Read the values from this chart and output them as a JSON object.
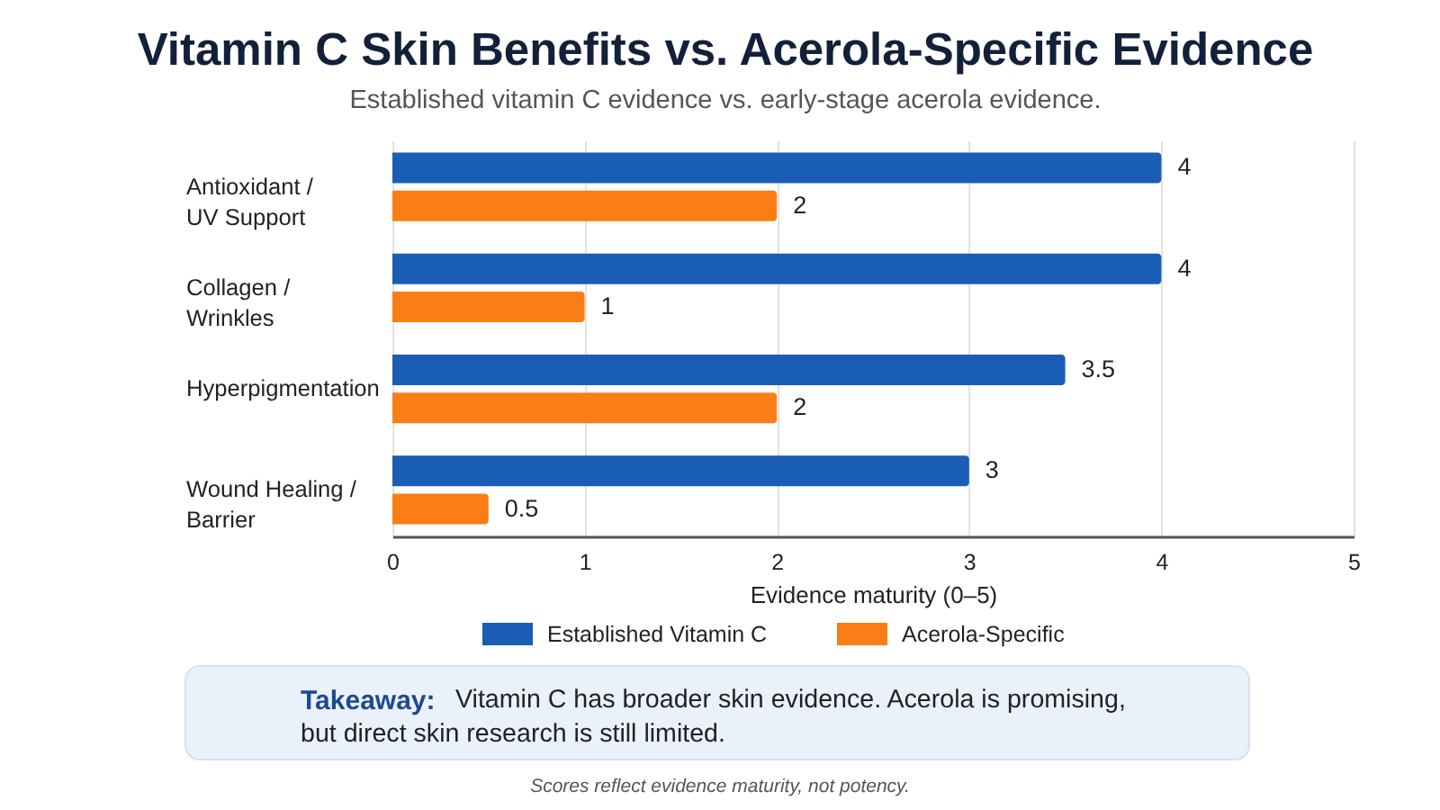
{
  "chart_data": {
    "type": "bar",
    "orientation": "horizontal",
    "title": "Vitamin C Skin Benefits vs. Acerola-Specific Evidence",
    "subtitle": "Established vitamin C evidence vs. early-stage acerola evidence.",
    "categories": [
      "Antioxidant /\nUV Support",
      "Collagen /\nWrinkles",
      "Hyperpigmentation",
      "Wound Healing /\nBarrier"
    ],
    "series": [
      {
        "name": "Established Vitamin C",
        "color": "#1a5db4",
        "values": [
          4,
          4,
          3.5,
          3
        ]
      },
      {
        "name": "Acerola-Specific",
        "color": "#fb7d15",
        "values": [
          2,
          1,
          2,
          0.5
        ]
      }
    ],
    "xlabel": "Evidence maturity (0–5)",
    "xlim": [
      0,
      5
    ],
    "xticks": [
      0,
      1,
      2,
      3,
      4,
      5
    ],
    "grid": "x",
    "legend": "bottom",
    "data_labels": true,
    "annotations": [
      "Takeaway:",
      "Vitamin C has broader skin evidence. Acerola is promising,",
      "but direct skin research is still limited.",
      "Scores reflect evidence maturity, not potency."
    ]
  }
}
